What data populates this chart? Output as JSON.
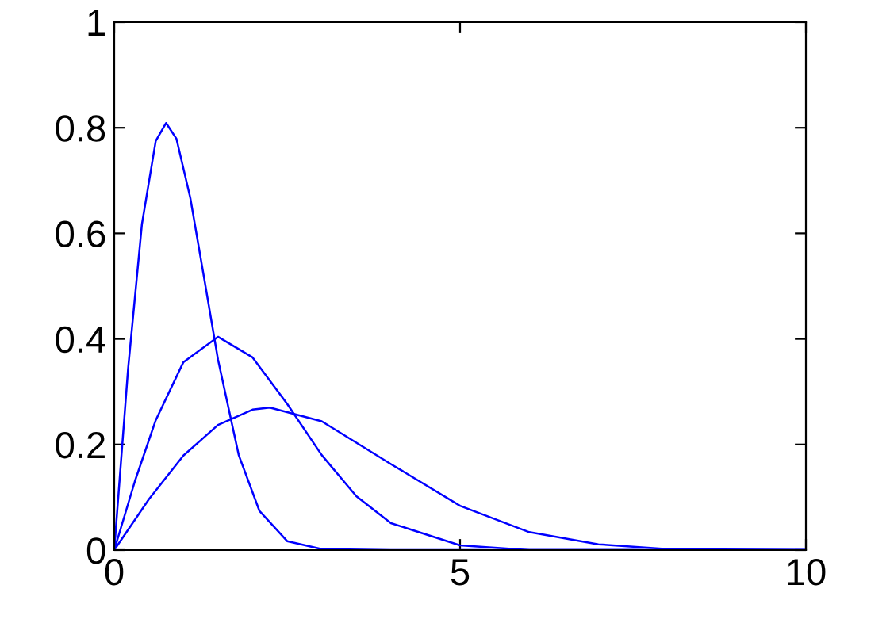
{
  "chart_data": {
    "type": "line",
    "xlim": [
      0,
      10
    ],
    "ylim": [
      0,
      1
    ],
    "xticks": [
      0,
      5,
      10
    ],
    "yticks": [
      0,
      0.2,
      0.4,
      0.6,
      0.8,
      1
    ],
    "grid": false,
    "marker": "none",
    "line_style": "solid",
    "series": [
      {
        "color": "#0000ff",
        "x": [
          0,
          0.2,
          0.4,
          0.6,
          0.75,
          0.9,
          1.1,
          1.3,
          1.5,
          1.8,
          2.1,
          2.5,
          3,
          4,
          10
        ],
        "values": [
          0,
          0.343,
          0.617,
          0.775,
          0.809,
          0.779,
          0.667,
          0.515,
          0.361,
          0.18,
          0.074,
          0.017,
          0.002,
          0,
          0
        ]
      },
      {
        "color": "#0000ff",
        "x": [
          0,
          0.3,
          0.6,
          1,
          1.5,
          2,
          2.5,
          3,
          3.5,
          4,
          5,
          6,
          8,
          10
        ],
        "values": [
          0,
          0.131,
          0.246,
          0.356,
          0.404,
          0.365,
          0.277,
          0.18,
          0.102,
          0.051,
          0.009,
          0,
          0,
          0
        ]
      },
      {
        "color": "#0000ff",
        "x": [
          0,
          0.5,
          1,
          1.5,
          2,
          2.25,
          3,
          4,
          5,
          6,
          7,
          8,
          10
        ],
        "values": [
          0,
          0.096,
          0.179,
          0.237,
          0.266,
          0.27,
          0.244,
          0.163,
          0.084,
          0.034,
          0.011,
          0.002,
          0
        ]
      }
    ]
  }
}
